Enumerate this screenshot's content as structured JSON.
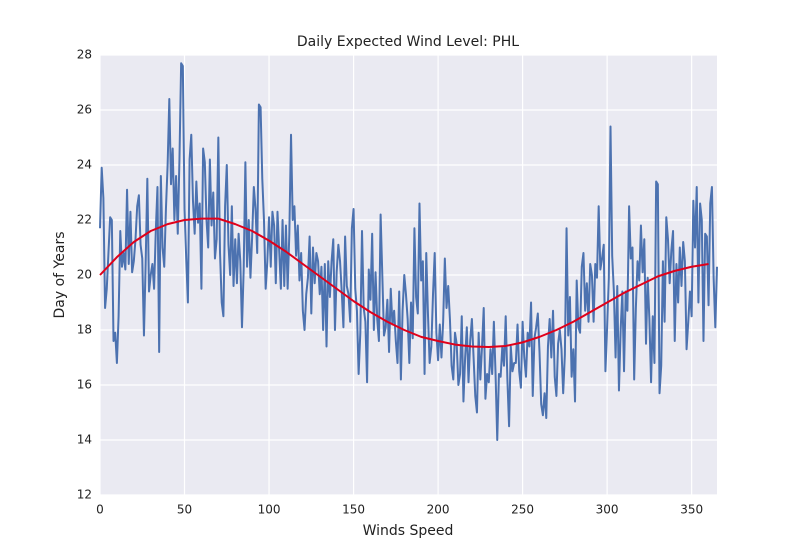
{
  "chart_data": {
    "type": "line",
    "title": "Daily Expected Wind Level: PHL",
    "x_label": "Winds Speed",
    "y_label": "Day of Years",
    "xlim": [
      0,
      365
    ],
    "ylim": [
      12,
      28
    ],
    "xticks": [
      0,
      50,
      100,
      150,
      200,
      250,
      300,
      350
    ],
    "yticks": [
      12,
      14,
      16,
      18,
      20,
      22,
      24,
      26,
      28
    ],
    "grid": true,
    "series": [
      {
        "color": "#4c72b0",
        "x": [
          0,
          1,
          2,
          3,
          4,
          5,
          6,
          7,
          8,
          9,
          10,
          11,
          12,
          13,
          14,
          15,
          16,
          17,
          18,
          19,
          20,
          21,
          22,
          23,
          24,
          25,
          26,
          27,
          28,
          29,
          30,
          31,
          32,
          33,
          34,
          35,
          36,
          37,
          38,
          39,
          40,
          41,
          42,
          43,
          44,
          45,
          46,
          47,
          48,
          49,
          50,
          51,
          52,
          53,
          54,
          55,
          56,
          57,
          58,
          59,
          60,
          61,
          62,
          63,
          64,
          65,
          66,
          67,
          68,
          69,
          70,
          71,
          72,
          73,
          74,
          75,
          76,
          77,
          78,
          79,
          80,
          81,
          82,
          83,
          84,
          85,
          86,
          87,
          88,
          89,
          90,
          91,
          92,
          93,
          94,
          95,
          96,
          97,
          98,
          99,
          100,
          101,
          102,
          103,
          104,
          105,
          106,
          107,
          108,
          109,
          110,
          111,
          112,
          113,
          114,
          115,
          116,
          117,
          118,
          119,
          120,
          121,
          122,
          123,
          124,
          125,
          126,
          127,
          128,
          129,
          130,
          131,
          132,
          133,
          134,
          135,
          136,
          137,
          138,
          139,
          140,
          141,
          142,
          143,
          144,
          145,
          146,
          147,
          148,
          149,
          150,
          151,
          152,
          153,
          154,
          155,
          156,
          157,
          158,
          159,
          160,
          161,
          162,
          163,
          164,
          165,
          166,
          167,
          168,
          169,
          170,
          171,
          172,
          173,
          174,
          175,
          176,
          177,
          178,
          179,
          180,
          181,
          182,
          183,
          184,
          185,
          186,
          187,
          188,
          189,
          190,
          191,
          192,
          193,
          194,
          195,
          196,
          197,
          198,
          199,
          200,
          201,
          202,
          203,
          204,
          205,
          206,
          207,
          208,
          209,
          210,
          211,
          212,
          213,
          214,
          215,
          216,
          217,
          218,
          219,
          220,
          221,
          222,
          223,
          224,
          225,
          226,
          227,
          228,
          229,
          230,
          231,
          232,
          233,
          234,
          235,
          236,
          237,
          238,
          239,
          240,
          241,
          242,
          243,
          244,
          245,
          246,
          247,
          248,
          249,
          250,
          251,
          252,
          253,
          254,
          255,
          256,
          257,
          258,
          259,
          260,
          261,
          262,
          263,
          264,
          265,
          266,
          267,
          268,
          269,
          270,
          271,
          272,
          273,
          274,
          275,
          276,
          277,
          278,
          279,
          280,
          281,
          282,
          283,
          284,
          285,
          286,
          287,
          288,
          289,
          290,
          291,
          292,
          293,
          294,
          295,
          296,
          297,
          298,
          299,
          300,
          301,
          302,
          303,
          304,
          305,
          306,
          307,
          308,
          309,
          310,
          311,
          312,
          313,
          314,
          315,
          316,
          317,
          318,
          319,
          320,
          321,
          322,
          323,
          324,
          325,
          326,
          327,
          328,
          329,
          330,
          331,
          332,
          333,
          334,
          335,
          336,
          337,
          338,
          339,
          340,
          341,
          342,
          343,
          344,
          345,
          346,
          347,
          348,
          349,
          350,
          351,
          352,
          353,
          354,
          355,
          356,
          357,
          358,
          359,
          360,
          361,
          362,
          363,
          364,
          365
        ],
        "values": [
          21.7,
          23.9,
          22.8,
          18.8,
          19.5,
          20.8,
          22.1,
          22.0,
          17.6,
          17.9,
          16.8,
          18.5,
          21.6,
          20.3,
          20.8,
          20.2,
          23.1,
          20.4,
          22.3,
          20.1,
          20.5,
          21.3,
          22.5,
          22.9,
          21.1,
          20.6,
          17.8,
          20.4,
          23.5,
          19.4,
          20.0,
          20.4,
          19.5,
          21.6,
          23.2,
          17.2,
          23.6,
          21.0,
          20.3,
          22.4,
          24.0,
          26.4,
          23.3,
          24.6,
          22.0,
          23.6,
          21.5,
          24.2,
          27.7,
          27.6,
          22.4,
          20.6,
          19.0,
          24.2,
          25.1,
          22.7,
          21.5,
          23.4,
          21.9,
          22.6,
          19.5,
          24.6,
          24.1,
          22.0,
          21.0,
          24.2,
          21.8,
          23.0,
          20.6,
          21.3,
          25.0,
          20.8,
          19.0,
          18.5,
          22.5,
          24.0,
          21.1,
          20.0,
          22.5,
          19.6,
          21.3,
          19.7,
          21.5,
          20.5,
          18.1,
          20.2,
          24.1,
          20.3,
          22.0,
          19.9,
          21.4,
          23.2,
          22.4,
          20.8,
          26.2,
          26.1,
          23.5,
          22.0,
          19.5,
          20.5,
          22.1,
          20.3,
          22.3,
          21.8,
          19.7,
          22.3,
          20.9,
          19.5,
          22.0,
          19.6,
          21.8,
          19.5,
          21.5,
          25.1,
          22.0,
          22.5,
          20.7,
          21.8,
          19.8,
          20.8,
          18.7,
          18.0,
          19.3,
          19.9,
          21.4,
          18.6,
          21.0,
          19.7,
          20.8,
          20.5,
          19.3,
          20.3,
          18.0,
          20.4,
          17.4,
          20.5,
          19.2,
          20.5,
          21.3,
          18.0,
          20.1,
          21.1,
          20.5,
          19.4,
          18.1,
          21.4,
          19.6,
          19.3,
          18.3,
          21.7,
          22.4,
          19.5,
          18.7,
          16.4,
          17.9,
          21.6,
          18.8,
          18.3,
          16.1,
          20.2,
          19.1,
          21.5,
          18.0,
          20.1,
          18.4,
          17.6,
          22.2,
          20.0,
          17.8,
          18.1,
          19.1,
          17.2,
          19.5,
          18.2,
          18.7,
          17.6,
          16.8,
          19.4,
          16.2,
          18.7,
          20.0,
          19.3,
          18.4,
          16.8,
          19.0,
          17.7,
          21.7,
          19.2,
          18.6,
          22.6,
          19.8,
          20.5,
          16.4,
          20.8,
          18.6,
          16.8,
          17.4,
          19.3,
          20.8,
          17.9,
          16.9,
          18.2,
          17.0,
          18.3,
          20.6,
          18.8,
          19.6,
          18.4,
          16.7,
          16.2,
          17.9,
          17.5,
          16.0,
          16.4,
          18.5,
          15.4,
          17.0,
          18.1,
          16.1,
          17.6,
          18.4,
          17.0,
          15.6,
          15.0,
          17.9,
          16.2,
          17.4,
          18.8,
          15.5,
          16.4,
          16.1,
          17.3,
          16.4,
          18.3,
          16.4,
          14.0,
          16.4,
          16.3,
          17.4,
          16.7,
          18.5,
          16.2,
          14.5,
          17.4,
          16.5,
          16.8,
          16.8,
          18.2,
          16.5,
          15.9,
          18.3,
          17.0,
          16.3,
          17.9,
          17.4,
          19.0,
          15.6,
          17.7,
          18.1,
          18.6,
          17.2,
          15.3,
          14.9,
          15.7,
          14.8,
          17.4,
          18.4,
          17.0,
          18.7,
          16.3,
          15.6,
          17.5,
          18.0,
          17.3,
          15.7,
          17.1,
          21.7,
          17.8,
          19.2,
          16.3,
          17.3,
          15.4,
          19.8,
          18.1,
          17.9,
          20.3,
          20.8,
          18.7,
          19.7,
          18.3,
          20.4,
          20.0,
          18.3,
          20.4,
          19.9,
          22.5,
          20.2,
          20.6,
          21.1,
          16.5,
          18.1,
          19.9,
          25.4,
          20.7,
          19.4,
          17.0,
          19.6,
          15.8,
          18.0,
          19.4,
          16.5,
          19.4,
          18.7,
          22.5,
          20.6,
          21.0,
          16.2,
          18.8,
          20.5,
          19.8,
          21.8,
          20.1,
          21.3,
          17.5,
          19.9,
          18.4,
          16.1,
          18.5,
          16.8,
          23.4,
          23.3,
          15.7,
          16.7,
          20.5,
          18.3,
          22.1,
          21.3,
          19.7,
          20.9,
          21.6,
          17.6,
          20.4,
          19.0,
          21.0,
          19.6,
          21.2,
          20.5,
          17.3,
          18.3,
          19.4,
          18.5,
          22.7,
          21.0,
          23.2,
          19.0,
          22.6,
          22.0,
          17.6,
          21.5,
          21.4,
          18.9,
          22.6,
          23.2,
          19.9,
          18.1,
          20.3
        ]
      },
      {
        "color": "#e0001a",
        "x": [
          0,
          10,
          20,
          30,
          40,
          50,
          60,
          70,
          80,
          90,
          100,
          110,
          120,
          130,
          140,
          150,
          160,
          170,
          180,
          190,
          200,
          210,
          220,
          230,
          240,
          250,
          260,
          270,
          280,
          290,
          300,
          310,
          320,
          330,
          340,
          350,
          360
        ],
        "values": [
          20.0,
          20.65,
          21.2,
          21.6,
          21.85,
          22.0,
          22.05,
          22.05,
          21.85,
          21.6,
          21.25,
          20.85,
          20.4,
          19.95,
          19.5,
          19.05,
          18.65,
          18.3,
          18.0,
          17.75,
          17.6,
          17.47,
          17.4,
          17.38,
          17.42,
          17.55,
          17.75,
          18.0,
          18.3,
          18.65,
          19.0,
          19.35,
          19.65,
          19.95,
          20.15,
          20.3,
          20.4
        ]
      }
    ]
  }
}
